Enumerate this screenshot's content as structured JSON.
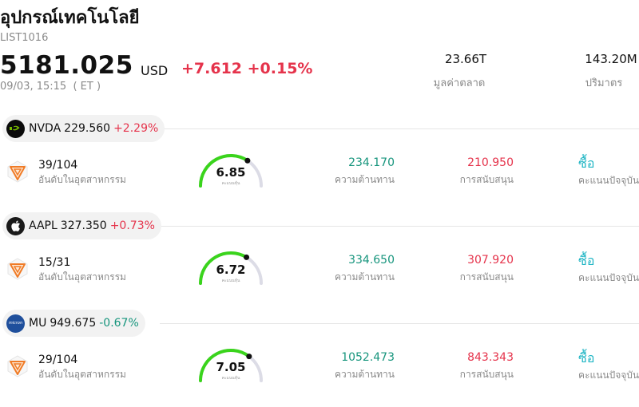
{
  "header": {
    "title": "อุปกรณ์เทคโนโลยี",
    "code": "LIST1016",
    "price": "5181.025",
    "currency": "USD",
    "change": "+7.612 +0.15%",
    "datetime": "09/03, 15:15  ( ET )",
    "market_cap_value": "23.66T",
    "market_cap_label": "มูลค่าตลาด",
    "volume_value": "143.20M",
    "volume_label": "ปริมาตร"
  },
  "stocks": [
    {
      "symbol": "NVDA",
      "price": "229.560",
      "change": "+2.29%",
      "direction": "up",
      "logo_icon": "nvidia-logo-icon",
      "logo_color": "#0b0b0b",
      "rank": "39/104",
      "rank_label": "อันดับในอุตสาหกรรม",
      "score": "6.85",
      "score_fraction": 0.685,
      "score_label": "คะแนนหุ้น",
      "resistance": "234.170",
      "resistance_label": "ความต้านทาน",
      "support": "210.950",
      "support_label": "การสนับสนุน",
      "action": "ซื้อ",
      "action_label": "คะแนนปัจจุบัน"
    },
    {
      "symbol": "AAPL",
      "price": "327.350",
      "change": "+0.73%",
      "direction": "up",
      "logo_icon": "apple-logo-icon",
      "logo_color": "#1a1a1a",
      "rank": "15/31",
      "rank_label": "อันดับในอุตสาหกรรม",
      "score": "6.72",
      "score_fraction": 0.672,
      "score_label": "คะแนนหุ้น",
      "resistance": "334.650",
      "resistance_label": "ความต้านทาน",
      "support": "307.920",
      "support_label": "การสนับสนุน",
      "action": "ซื้อ",
      "action_label": "คะแนนปัจจุบัน"
    },
    {
      "symbol": "MU",
      "price": "949.675",
      "change": "-0.67%",
      "direction": "down",
      "logo_icon": "micron-logo-icon",
      "logo_color": "#1f4f9c",
      "rank": "29/104",
      "rank_label": "อันดับในอุตสาหกรรม",
      "score": "7.05",
      "score_fraction": 0.705,
      "score_label": "คะแนนหุ้น",
      "resistance": "1052.473",
      "resistance_label": "ความต้านทาน",
      "support": "843.343",
      "support_label": "การสนับสนุน",
      "action": "ซื้อ",
      "action_label": "คะแนนปัจจุบัน"
    }
  ],
  "colors": {
    "up": "#e5334b",
    "down": "#17957d",
    "gauge_fill": "#3ad41c",
    "gauge_track": "#dcdce6",
    "action": "#1fb5c4",
    "badge": "#f07b26"
  }
}
